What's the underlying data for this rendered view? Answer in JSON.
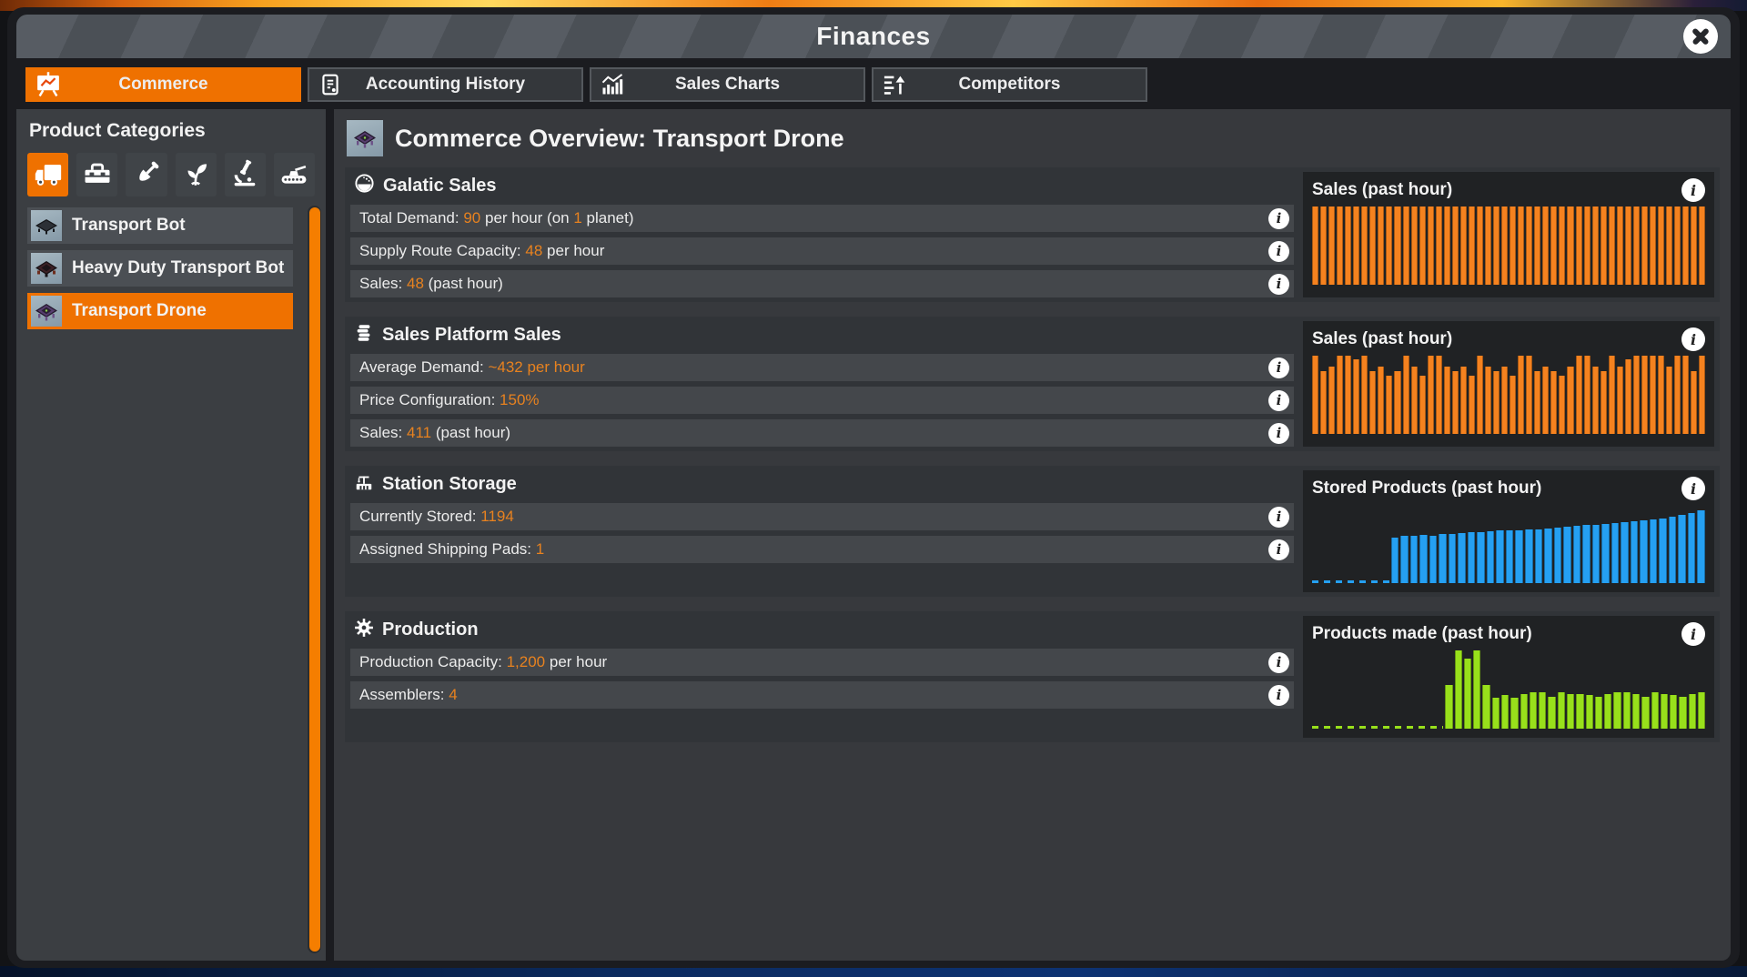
{
  "window": {
    "title": "Finances",
    "close_icon": "x-circle-icon"
  },
  "tabs": [
    {
      "label": "Commerce",
      "icon": "presentation-chart-icon",
      "active": true
    },
    {
      "label": "Accounting History",
      "icon": "document-icon",
      "active": false
    },
    {
      "label": "Sales Charts",
      "icon": "bar-chart-icon",
      "active": false
    },
    {
      "label": "Competitors",
      "icon": "competitors-icon",
      "active": false
    }
  ],
  "sidebar": {
    "title": "Product Categories",
    "categories": [
      {
        "name": "transport",
        "icon": "truck-icon",
        "selected": true
      },
      {
        "name": "tools",
        "icon": "toolbox-icon",
        "selected": false
      },
      {
        "name": "construction",
        "icon": "shovel-icon",
        "selected": false
      },
      {
        "name": "agriculture",
        "icon": "plant-icon",
        "selected": false
      },
      {
        "name": "science",
        "icon": "microscope-icon",
        "selected": false
      },
      {
        "name": "military",
        "icon": "tank-icon",
        "selected": false
      }
    ],
    "products": [
      {
        "label": "Transport Bot",
        "icon": "transport-bot-icon",
        "selected": false
      },
      {
        "label": "Heavy Duty Transport Bot",
        "icon": "heavy-transport-bot-icon",
        "selected": false
      },
      {
        "label": "Transport Drone",
        "icon": "transport-drone-icon",
        "selected": true
      }
    ]
  },
  "main": {
    "title": "Commerce Overview: Transport Drone",
    "title_icon": "transport-drone-icon",
    "sections": [
      {
        "title": "Galatic Sales",
        "icon": "globe-icon",
        "chart": 0,
        "rows": [
          {
            "segments": [
              {
                "text": "Total Demand: ",
                "highlight": false
              },
              {
                "text": "90",
                "highlight": true
              },
              {
                "text": " per hour (on ",
                "highlight": false
              },
              {
                "text": "1",
                "highlight": true
              },
              {
                "text": " planet)",
                "highlight": false
              }
            ]
          },
          {
            "segments": [
              {
                "text": "Supply Route Capacity: ",
                "highlight": false
              },
              {
                "text": "48",
                "highlight": true
              },
              {
                "text": " per hour",
                "highlight": false
              }
            ]
          },
          {
            "segments": [
              {
                "text": "Sales: ",
                "highlight": false
              },
              {
                "text": "48",
                "highlight": true
              },
              {
                "text": " (past hour)",
                "highlight": false
              }
            ]
          }
        ]
      },
      {
        "title": "Sales Platform Sales",
        "icon": "coins-icon",
        "chart": 1,
        "rows": [
          {
            "segments": [
              {
                "text": "Average Demand: ",
                "highlight": false
              },
              {
                "text": "~432 per hour",
                "highlight": true
              }
            ]
          },
          {
            "segments": [
              {
                "text": "Price Configuration: ",
                "highlight": false
              },
              {
                "text": "150%",
                "highlight": true
              }
            ]
          },
          {
            "segments": [
              {
                "text": "Sales: ",
                "highlight": false
              },
              {
                "text": "411",
                "highlight": true
              },
              {
                "text": " (past hour)",
                "highlight": false
              }
            ]
          }
        ]
      },
      {
        "title": "Station Storage",
        "icon": "station-icon",
        "chart": 2,
        "rows": [
          {
            "segments": [
              {
                "text": "Currently Stored: ",
                "highlight": false
              },
              {
                "text": "1194",
                "highlight": true
              }
            ]
          },
          {
            "segments": [
              {
                "text": "Assigned Shipping Pads: ",
                "highlight": false
              },
              {
                "text": "1",
                "highlight": true
              }
            ]
          }
        ]
      },
      {
        "title": "Production",
        "icon": "gear-icon",
        "chart": 3,
        "rows": [
          {
            "segments": [
              {
                "text": "Production Capacity: ",
                "highlight": false
              },
              {
                "text": "1,200",
                "highlight": true
              },
              {
                "text": " per hour",
                "highlight": false
              }
            ]
          },
          {
            "segments": [
              {
                "text": "Assemblers: ",
                "highlight": false
              },
              {
                "text": "4",
                "highlight": true
              }
            ]
          }
        ]
      }
    ]
  },
  "chart_data": [
    {
      "type": "bar",
      "title": "Sales (past hour)",
      "color": "#F5821F",
      "unit": "relative bar height % (chart shows no axis labels)",
      "zero_prefix_count": 0,
      "values": [
        100,
        100,
        100,
        100,
        100,
        100,
        100,
        100,
        100,
        100,
        100,
        100,
        100,
        100,
        100,
        100,
        100,
        100,
        100,
        100,
        100,
        100,
        100,
        100,
        100,
        100,
        100,
        100,
        100,
        100,
        100,
        100,
        100,
        100,
        100,
        100,
        100,
        100,
        100,
        100,
        100,
        100,
        100,
        100,
        100,
        100,
        100,
        100
      ]
    },
    {
      "type": "bar",
      "title": "Sales (past hour)",
      "color": "#F5821F",
      "unit": "relative bar height % (chart shows no axis labels)",
      "zero_prefix_count": 0,
      "values": [
        100,
        80,
        86,
        100,
        100,
        95,
        100,
        80,
        86,
        75,
        80,
        100,
        86,
        75,
        100,
        100,
        86,
        80,
        86,
        75,
        100,
        86,
        80,
        86,
        75,
        100,
        100,
        80,
        86,
        80,
        75,
        86,
        100,
        100,
        86,
        80,
        100,
        86,
        95,
        100,
        100,
        100,
        100,
        86,
        100,
        100,
        80,
        100
      ]
    },
    {
      "type": "bar",
      "title": "Stored Products (past hour)",
      "color": "#25A0F2",
      "unit": "relative bar height % (chart shows no axis labels)",
      "zero_prefix_count": 13,
      "zero_shown_as_dashed_baseline": true,
      "values": [
        58,
        61,
        60,
        62,
        61,
        63,
        63,
        64,
        65,
        65,
        66,
        67,
        67,
        68,
        69,
        69,
        70,
        71,
        72,
        73,
        74,
        75,
        76,
        77,
        78,
        79,
        80,
        81,
        83,
        85,
        87,
        89,
        93
      ]
    },
    {
      "type": "bar",
      "title": "Products made (past hour)",
      "color": "#98E01B",
      "unit": "relative bar height % (chart shows no axis labels)",
      "zero_prefix_count": 23,
      "zero_shown_as_dashed_baseline": true,
      "values": [
        56,
        100,
        90,
        100,
        56,
        40,
        43,
        40,
        44,
        46,
        46,
        41,
        46,
        44,
        44,
        43,
        41,
        44,
        46,
        46,
        44,
        41,
        46,
        44,
        43,
        41,
        44,
        47
      ]
    }
  ],
  "colors": {
    "accent_orange": "#EF7100",
    "value_orange": "#E8821F",
    "bar_orange": "#F5821F",
    "bar_blue": "#25A0F2",
    "bar_green": "#98E01B",
    "scrollbar_orange": "#F57E00"
  }
}
